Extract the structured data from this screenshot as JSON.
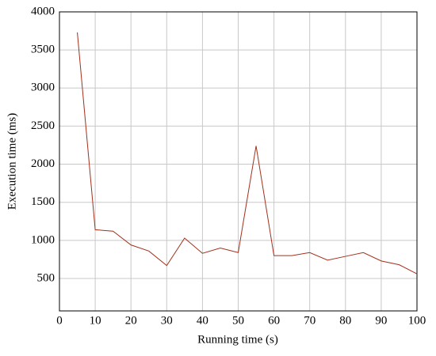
{
  "chart_data": {
    "type": "line",
    "x_label": "Running time (s)",
    "y_label": "Execution time (ms)",
    "x": [
      5,
      10,
      15,
      20,
      25,
      30,
      35,
      40,
      45,
      50,
      55,
      60,
      65,
      70,
      75,
      80,
      85,
      90,
      95,
      100
    ],
    "series": [
      {
        "color": "#a3301c",
        "values": [
          3730,
          1140,
          1120,
          940,
          860,
          670,
          1030,
          830,
          900,
          840,
          2240,
          800,
          800,
          840,
          740,
          790,
          840,
          730,
          680,
          560
        ]
      }
    ],
    "xlim": [
      0,
      100
    ],
    "xticks": [
      0,
      10,
      20,
      30,
      40,
      50,
      60,
      70,
      80,
      90,
      100
    ],
    "ylim": [
      74,
      4000
    ],
    "yticks": [
      500,
      1000,
      1500,
      2000,
      2500,
      3000,
      3500,
      4000
    ],
    "grid": true
  }
}
